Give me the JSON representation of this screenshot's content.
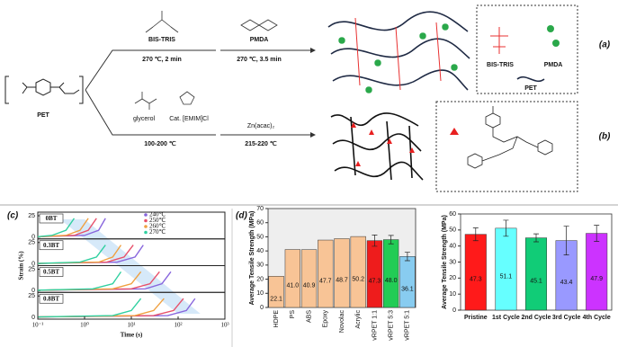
{
  "scheme": {
    "pet": "PET",
    "top_reagent_1": "BIS-TRIS",
    "top_condition_1": "270 ℃, 2 min",
    "top_reagent_2": "PMDA",
    "top_condition_2": "270 ℃, 3.5 min",
    "legend_bistris": "BIS-TRIS",
    "legend_pmda": "PMDA",
    "legend_pet": "PET",
    "label_a": "(a)",
    "bottom_reagent_1": "glycerol",
    "bottom_catalyst": "Cat. [EMIM]Cl",
    "bottom_condition_1": "100-200 ℃",
    "bottom_reagent_2": "Zn(acac)₂",
    "bottom_condition_2": "215-220 ℃",
    "label_b": "(b)"
  },
  "chart_data": [
    {
      "type": "line",
      "panel_label": "(c)",
      "x_label": "Time (s)",
      "y_label": "Strain (%)",
      "log_x": true,
      "xlim": [
        0.1,
        1000
      ],
      "xticks": [
        {
          "value": 0.1,
          "label": "10⁻¹"
        },
        {
          "value": 1,
          "label": "10⁰"
        },
        {
          "value": 10,
          "label": "10¹"
        },
        {
          "value": 100,
          "label": "10²"
        },
        {
          "value": 1000,
          "label": "10³"
        }
      ],
      "ylim": [
        0,
        25
      ],
      "yticks": [
        0,
        25
      ],
      "legend": [
        {
          "name": "240℃",
          "color": "#8866dd"
        },
        {
          "name": "250℃",
          "color": "#e8506a"
        },
        {
          "name": "260℃",
          "color": "#f0a040"
        },
        {
          "name": "270℃",
          "color": "#30d0a0"
        }
      ],
      "panels": [
        {
          "label": "0BT",
          "series": [
            {
              "x": [
                0.1,
                1,
                2,
                2.8
              ],
              "values": [
                0.5,
                2,
                8,
                22
              ]
            },
            {
              "x": [
                0.1,
                0.6,
                1.2,
                1.8
              ],
              "values": [
                0.5,
                2,
                8,
                22
              ]
            },
            {
              "x": [
                0.1,
                0.4,
                0.8,
                1.2
              ],
              "values": [
                0.5,
                2,
                8,
                22
              ]
            },
            {
              "x": [
                0.1,
                0.2,
                0.4,
                0.6
              ],
              "values": [
                0.5,
                2,
                8,
                22
              ]
            }
          ]
        },
        {
          "label": "0.3BT",
          "series": [
            {
              "x": [
                0.1,
                5,
                12,
                18
              ],
              "values": [
                0.5,
                2,
                8,
                22
              ]
            },
            {
              "x": [
                0.1,
                3,
                7,
                11
              ],
              "values": [
                0.5,
                2,
                8,
                22
              ]
            },
            {
              "x": [
                0.1,
                2,
                4,
                6
              ],
              "values": [
                0.5,
                2,
                8,
                22
              ]
            },
            {
              "x": [
                0.1,
                0.8,
                1.8,
                2.8
              ],
              "values": [
                0.5,
                2,
                8,
                22
              ]
            }
          ]
        },
        {
          "label": "0.5BT",
          "series": [
            {
              "x": [
                0.1,
                20,
                45,
                70
              ],
              "values": [
                0.5,
                2,
                8,
                22
              ]
            },
            {
              "x": [
                0.1,
                10,
                25,
                40
              ],
              "values": [
                0.5,
                2,
                8,
                22
              ]
            },
            {
              "x": [
                0.1,
                4,
                10,
                16
              ],
              "values": [
                0.5,
                2,
                8,
                22
              ]
            },
            {
              "x": [
                0.1,
                1.5,
                4,
                6
              ],
              "values": [
                0.5,
                2,
                8,
                22
              ]
            }
          ]
        },
        {
          "label": "0.8BT",
          "series": [
            {
              "x": [
                0.1,
                60,
                150,
                230
              ],
              "values": [
                0.5,
                2,
                8,
                22
              ]
            },
            {
              "x": [
                0.1,
                30,
                80,
                130
              ],
              "values": [
                0.5,
                2,
                8,
                22
              ]
            },
            {
              "x": [
                0.1,
                12,
                30,
                50
              ],
              "values": [
                0.5,
                2,
                8,
                22
              ]
            },
            {
              "x": [
                0.1,
                4,
                10,
                16
              ],
              "values": [
                0.5,
                2,
                8,
                22
              ]
            }
          ]
        }
      ]
    },
    {
      "type": "bar",
      "panel_label": "(d)",
      "y_label": "Average Tensile Strength (MPa)",
      "categories": [
        "HDPE",
        "PS",
        "ABS",
        "Epoxy",
        "Novolac",
        "Acrylic",
        "vRPET 1:1",
        "vRPET 5:3",
        "vRPET 5:1"
      ],
      "values": [
        22.1,
        41.0,
        40.9,
        47.7,
        48.7,
        50.2,
        47.3,
        48.0,
        36.1
      ],
      "value_labels": [
        "22.1",
        "41.0",
        "40.9",
        "47.7",
        "48.7",
        "50.2",
        "47.3",
        "48.0",
        "36.1"
      ],
      "errors": [
        null,
        null,
        null,
        null,
        null,
        null,
        4,
        3,
        3
      ],
      "colors": [
        "#f8c496",
        "#f8c496",
        "#f8c496",
        "#f8c496",
        "#f8c496",
        "#f8c496",
        "#ee1c1c",
        "#22cc55",
        "#88ccf0"
      ],
      "ylim": [
        0,
        70
      ],
      "yticks": [
        0,
        10,
        20,
        30,
        40,
        50,
        60,
        70
      ]
    },
    {
      "type": "bar",
      "y_label": "Average Tensile Strength (MPa)",
      "categories": [
        "Pristine",
        "1st Cycle",
        "2nd Cycle",
        "3rd Cycle",
        "4th Cycle"
      ],
      "values": [
        47.3,
        51.1,
        45.1,
        43.4,
        47.9
      ],
      "value_labels": [
        "47.3",
        "51.1",
        "45.1",
        "43.4",
        "47.9"
      ],
      "errors": [
        4,
        5,
        2.5,
        9,
        5
      ],
      "colors": [
        "#ff1a1a",
        "#66ffff",
        "#11cc77",
        "#9999ff",
        "#cc33ff"
      ],
      "ylim": [
        0,
        60
      ],
      "yticks": [
        0,
        10,
        20,
        30,
        40,
        50,
        60
      ]
    }
  ]
}
